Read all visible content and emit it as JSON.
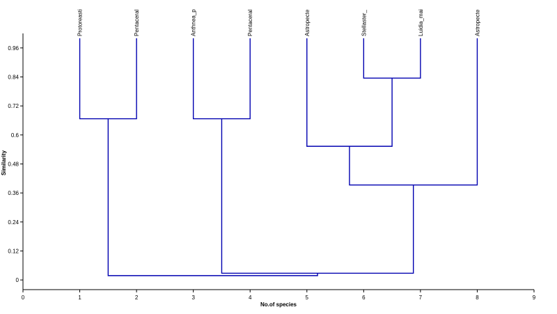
{
  "chart_data": {
    "type": "dendrogram",
    "xlabel": "No.of species",
    "ylabel": "Similarity",
    "xlim": [
      0,
      9
    ],
    "ylim": [
      -0.04,
      1.02
    ],
    "xticks": [
      "0",
      "1",
      "2",
      "3",
      "4",
      "5",
      "6",
      "7",
      "8",
      "9"
    ],
    "yticks": [
      "0",
      "0.12",
      "0.24",
      "0.36",
      "0.48",
      "0.6",
      "0.72",
      "0.84",
      "0.96"
    ],
    "leaves": [
      {
        "label": "Protoreasti",
        "x": 1
      },
      {
        "label": "Pentaceral",
        "x": 2
      },
      {
        "label": "Anthnea_p",
        "x": 3
      },
      {
        "label": "Pentaceral",
        "x": 4
      },
      {
        "label": "Astropecte",
        "x": 5
      },
      {
        "label": "Stellaster_",
        "x": 6
      },
      {
        "label": "Luidia_mai",
        "x": 7
      },
      {
        "label": "Astropecte",
        "x": 8
      }
    ],
    "leaf_top": 1.0,
    "merges": [
      {
        "left_x": 6.0,
        "left_y": 1.0,
        "right_x": 7.0,
        "right_y": 1.0,
        "height": 0.835,
        "center_x": 6.5
      },
      {
        "left_x": 5.0,
        "left_y": 1.0,
        "right_x": 6.5,
        "right_y": 0.835,
        "height": 0.553,
        "center_x": 5.75
      },
      {
        "left_x": 5.75,
        "left_y": 0.553,
        "right_x": 8.0,
        "right_y": 1.0,
        "height": 0.393,
        "center_x": 6.875
      },
      {
        "left_x": 1.0,
        "left_y": 1.0,
        "right_x": 2.0,
        "right_y": 1.0,
        "height": 0.667,
        "center_x": 1.5
      },
      {
        "left_x": 3.0,
        "left_y": 1.0,
        "right_x": 4.0,
        "right_y": 1.0,
        "height": 0.667,
        "center_x": 3.5
      },
      {
        "left_x": 3.5,
        "left_y": 0.667,
        "right_x": 6.875,
        "right_y": 0.393,
        "height": 0.028,
        "center_x": 5.1875
      },
      {
        "left_x": 1.5,
        "left_y": 0.667,
        "right_x": 5.1875,
        "right_y": 0.028,
        "height": 0.018,
        "center_x": 3.34
      }
    ],
    "branch_color": "#0000b0",
    "grid": false
  }
}
